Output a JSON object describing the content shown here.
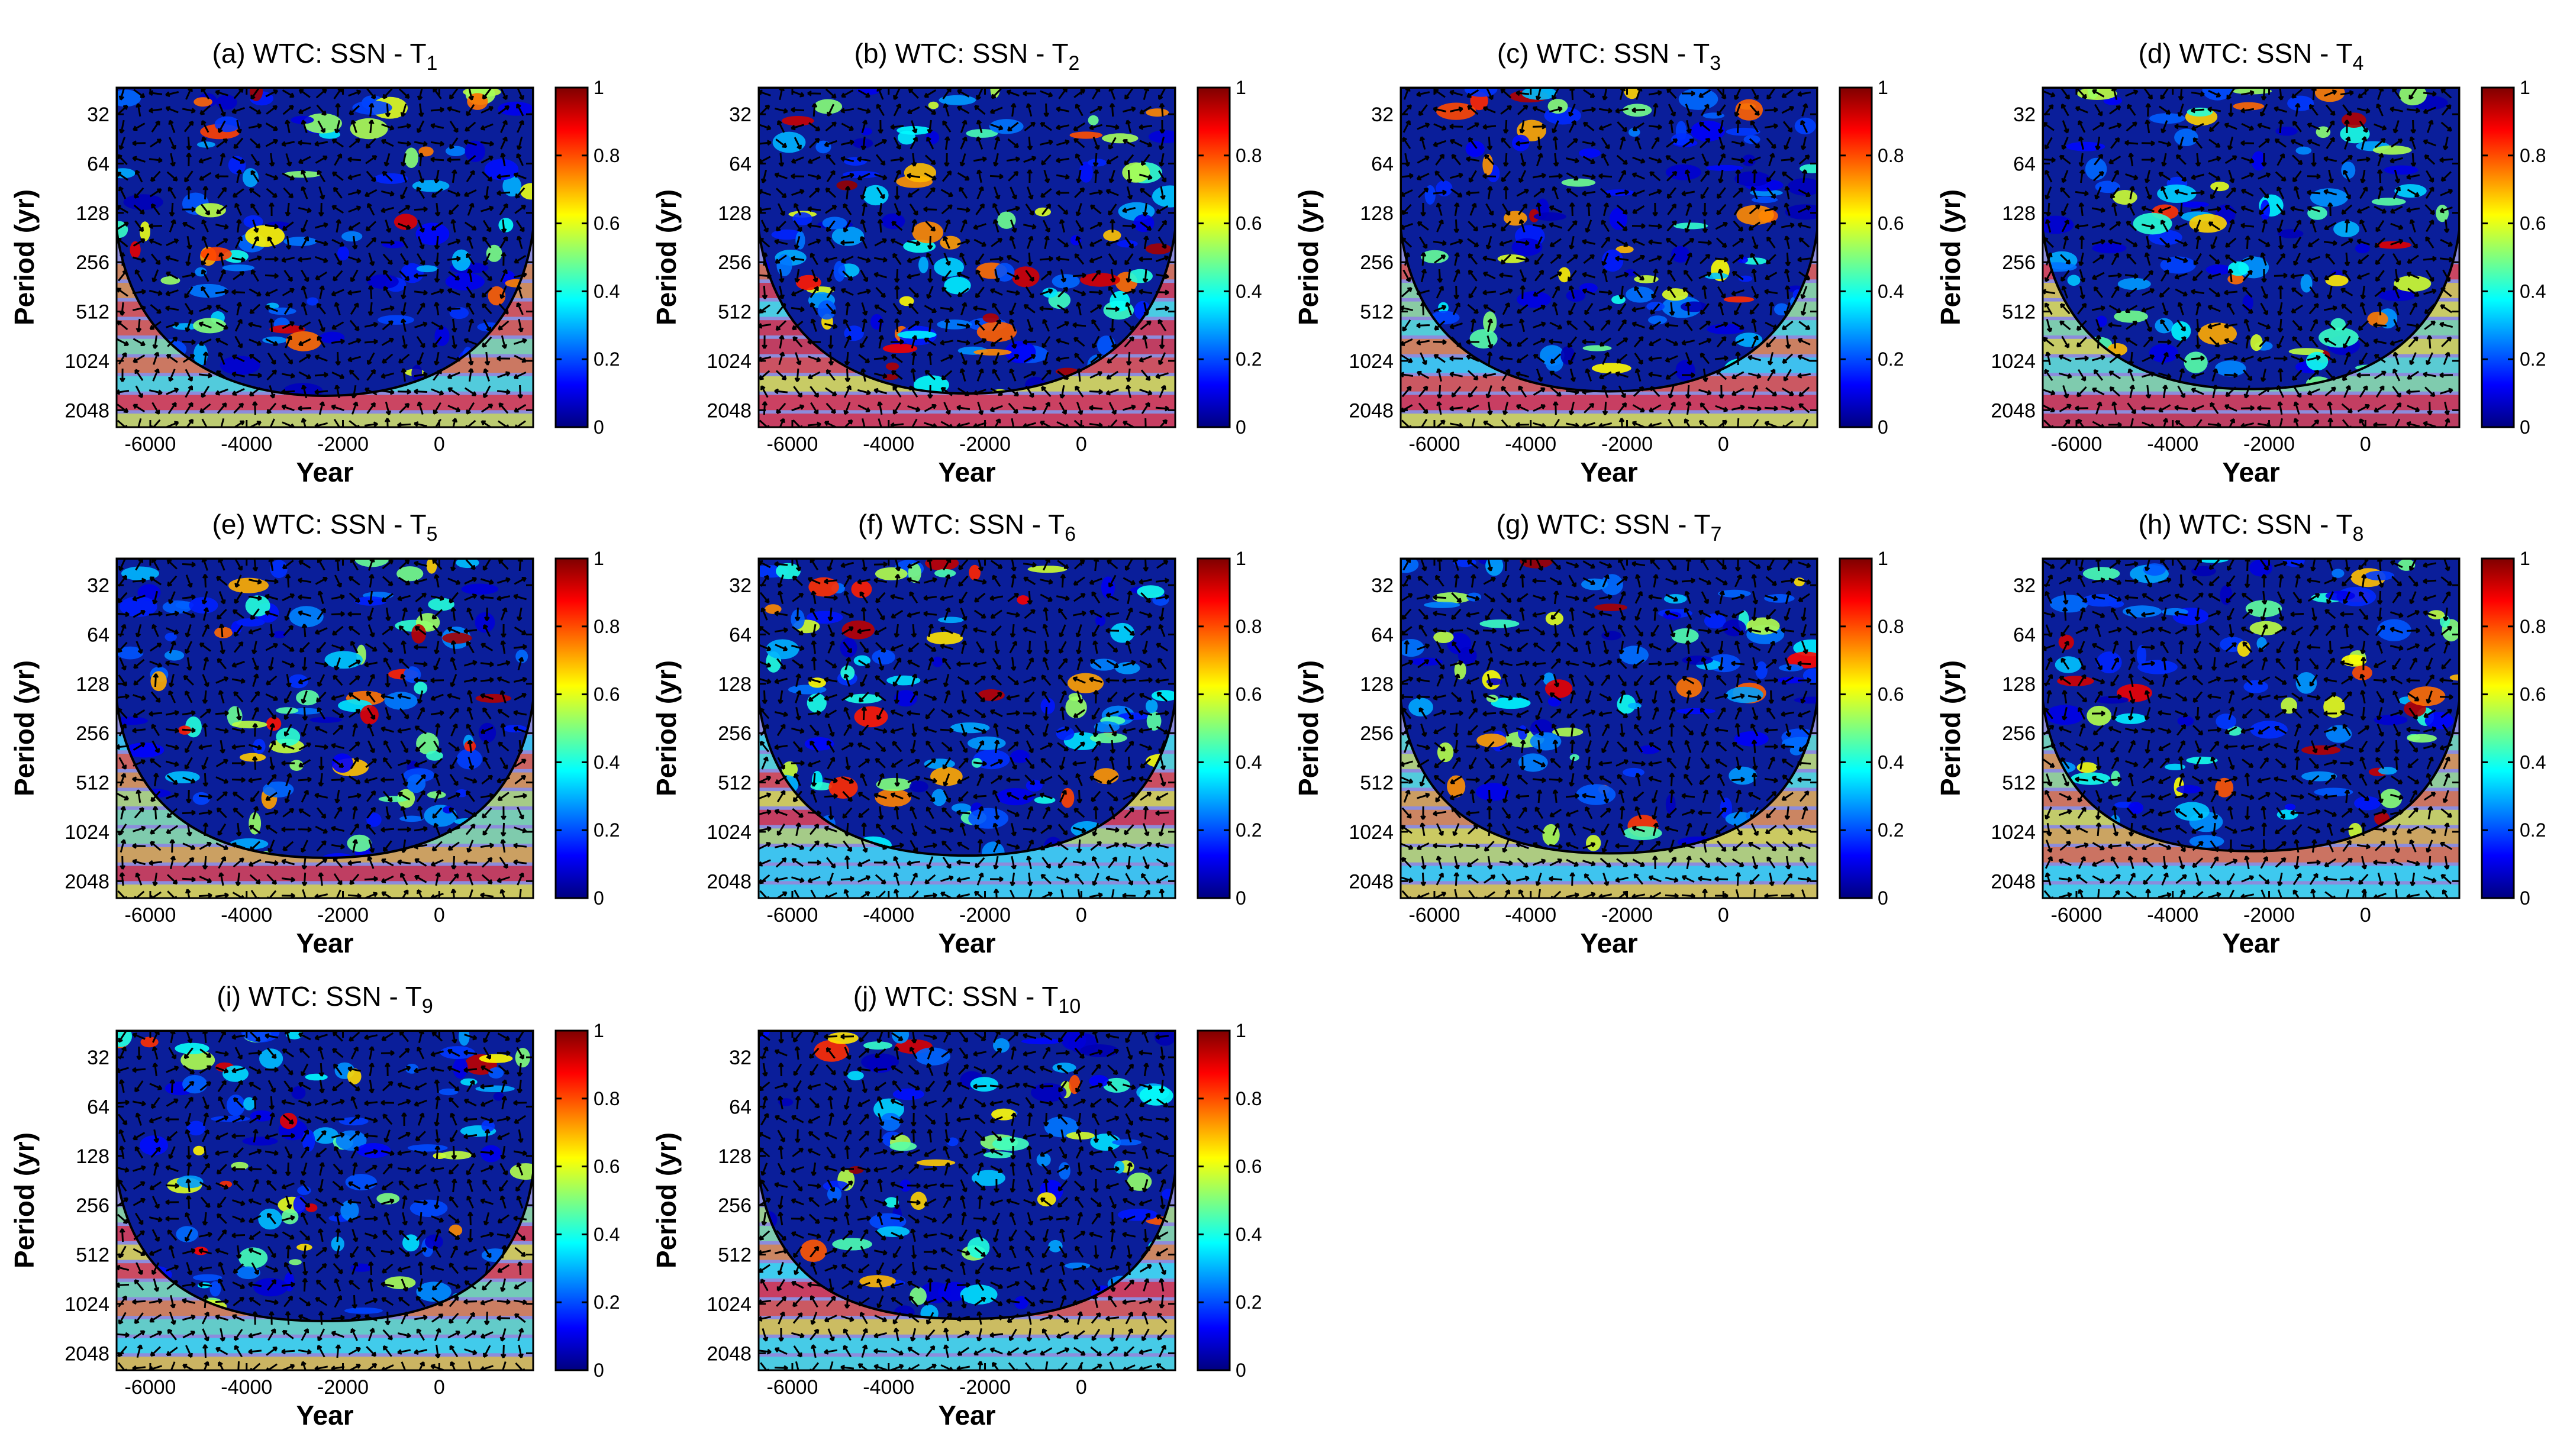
{
  "chart_data": [
    {
      "type": "heatmap",
      "panel": "a",
      "title_prefix": "(a) WTC: SSN - T",
      "title_subscript": "1",
      "xlabel": "Year",
      "ylabel": "Period (yr)",
      "xlim": [
        -6700,
        1950
      ],
      "ylim": [
        22,
        2600
      ],
      "x_ticks": [
        "-6000",
        "-4000",
        "-2000",
        "0"
      ],
      "x_tick_values": [
        -6000,
        -4000,
        -2000,
        0
      ],
      "y_ticks": [
        "32",
        "64",
        "128",
        "256",
        "512",
        "1024",
        "2048"
      ],
      "y_tick_values": [
        32,
        64,
        128,
        256,
        512,
        1024,
        2048
      ],
      "colorbar_ticks": [
        "0",
        "0.2",
        "0.4",
        "0.6",
        "0.8",
        "1"
      ],
      "colorbar_range": [
        0,
        1
      ]
    },
    {
      "type": "heatmap",
      "panel": "b",
      "title_prefix": "(b) WTC: SSN - T",
      "title_subscript": "2",
      "xlabel": "Year",
      "ylabel": "Period (yr)",
      "xlim": [
        -6700,
        1950
      ],
      "ylim": [
        22,
        2600
      ],
      "x_ticks": [
        "-6000",
        "-4000",
        "-2000",
        "0"
      ],
      "x_tick_values": [
        -6000,
        -4000,
        -2000,
        0
      ],
      "y_ticks": [
        "32",
        "64",
        "128",
        "256",
        "512",
        "1024",
        "2048"
      ],
      "y_tick_values": [
        32,
        64,
        128,
        256,
        512,
        1024,
        2048
      ],
      "colorbar_ticks": [
        "0",
        "0.2",
        "0.4",
        "0.6",
        "0.8",
        "1"
      ],
      "colorbar_range": [
        0,
        1
      ]
    },
    {
      "type": "heatmap",
      "panel": "c",
      "title_prefix": "(c) WTC: SSN - T",
      "title_subscript": "3",
      "xlabel": "Year",
      "ylabel": "Period (yr)",
      "xlim": [
        -6700,
        1950
      ],
      "ylim": [
        22,
        2600
      ],
      "x_ticks": [
        "-6000",
        "-4000",
        "-2000",
        "0"
      ],
      "x_tick_values": [
        -6000,
        -4000,
        -2000,
        0
      ],
      "y_ticks": [
        "32",
        "64",
        "128",
        "256",
        "512",
        "1024",
        "2048"
      ],
      "y_tick_values": [
        32,
        64,
        128,
        256,
        512,
        1024,
        2048
      ],
      "colorbar_ticks": [
        "0",
        "0.2",
        "0.4",
        "0.6",
        "0.8",
        "1"
      ],
      "colorbar_range": [
        0,
        1
      ]
    },
    {
      "type": "heatmap",
      "panel": "d",
      "title_prefix": "(d) WTC: SSN - T",
      "title_subscript": "4",
      "xlabel": "Year",
      "ylabel": "Period (yr)",
      "xlim": [
        -6700,
        1950
      ],
      "ylim": [
        22,
        2600
      ],
      "x_ticks": [
        "-6000",
        "-4000",
        "-2000",
        "0"
      ],
      "x_tick_values": [
        -6000,
        -4000,
        -2000,
        0
      ],
      "y_ticks": [
        "32",
        "64",
        "128",
        "256",
        "512",
        "1024",
        "2048"
      ],
      "y_tick_values": [
        32,
        64,
        128,
        256,
        512,
        1024,
        2048
      ],
      "colorbar_ticks": [
        "0",
        "0.2",
        "0.4",
        "0.6",
        "0.8",
        "1"
      ],
      "colorbar_range": [
        0,
        1
      ]
    },
    {
      "type": "heatmap",
      "panel": "e",
      "title_prefix": "(e) WTC: SSN - T",
      "title_subscript": "5",
      "xlabel": "Year",
      "ylabel": "Period (yr)",
      "xlim": [
        -6700,
        1950
      ],
      "ylim": [
        22,
        2600
      ],
      "x_ticks": [
        "-6000",
        "-4000",
        "-2000",
        "0"
      ],
      "x_tick_values": [
        -6000,
        -4000,
        -2000,
        0
      ],
      "y_ticks": [
        "32",
        "64",
        "128",
        "256",
        "512",
        "1024",
        "2048"
      ],
      "y_tick_values": [
        32,
        64,
        128,
        256,
        512,
        1024,
        2048
      ],
      "colorbar_ticks": [
        "0",
        "0.2",
        "0.4",
        "0.6",
        "0.8",
        "1"
      ],
      "colorbar_range": [
        0,
        1
      ]
    },
    {
      "type": "heatmap",
      "panel": "f",
      "title_prefix": "(f) WTC: SSN - T",
      "title_subscript": "6",
      "xlabel": "Year",
      "ylabel": "Period (yr)",
      "xlim": [
        -6700,
        1950
      ],
      "ylim": [
        22,
        2600
      ],
      "x_ticks": [
        "-6000",
        "-4000",
        "-2000",
        "0"
      ],
      "x_tick_values": [
        -6000,
        -4000,
        -2000,
        0
      ],
      "y_ticks": [
        "32",
        "64",
        "128",
        "256",
        "512",
        "1024",
        "2048"
      ],
      "y_tick_values": [
        32,
        64,
        128,
        256,
        512,
        1024,
        2048
      ],
      "colorbar_ticks": [
        "0",
        "0.2",
        "0.4",
        "0.6",
        "0.8",
        "1"
      ],
      "colorbar_range": [
        0,
        1
      ]
    },
    {
      "type": "heatmap",
      "panel": "g",
      "title_prefix": "(g) WTC: SSN - T",
      "title_subscript": "7",
      "xlabel": "Year",
      "ylabel": "Period (yr)",
      "xlim": [
        -6700,
        1950
      ],
      "ylim": [
        22,
        2600
      ],
      "x_ticks": [
        "-6000",
        "-4000",
        "-2000",
        "0"
      ],
      "x_tick_values": [
        -6000,
        -4000,
        -2000,
        0
      ],
      "y_ticks": [
        "32",
        "64",
        "128",
        "256",
        "512",
        "1024",
        "2048"
      ],
      "y_tick_values": [
        32,
        64,
        128,
        256,
        512,
        1024,
        2048
      ],
      "colorbar_ticks": [
        "0",
        "0.2",
        "0.4",
        "0.6",
        "0.8",
        "1"
      ],
      "colorbar_range": [
        0,
        1
      ]
    },
    {
      "type": "heatmap",
      "panel": "h",
      "title_prefix": "(h) WTC: SSN - T",
      "title_subscript": "8",
      "xlabel": "Year",
      "ylabel": "Period (yr)",
      "xlim": [
        -6700,
        1950
      ],
      "ylim": [
        22,
        2600
      ],
      "x_ticks": [
        "-6000",
        "-4000",
        "-2000",
        "0"
      ],
      "x_tick_values": [
        -6000,
        -4000,
        -2000,
        0
      ],
      "y_ticks": [
        "32",
        "64",
        "128",
        "256",
        "512",
        "1024",
        "2048"
      ],
      "y_tick_values": [
        32,
        64,
        128,
        256,
        512,
        1024,
        2048
      ],
      "colorbar_ticks": [
        "0",
        "0.2",
        "0.4",
        "0.6",
        "0.8",
        "1"
      ],
      "colorbar_range": [
        0,
        1
      ]
    },
    {
      "type": "heatmap",
      "panel": "i",
      "title_prefix": "(i) WTC: SSN - T",
      "title_subscript": "9",
      "xlabel": "Year",
      "ylabel": "Period (yr)",
      "xlim": [
        -6700,
        1950
      ],
      "ylim": [
        22,
        2600
      ],
      "x_ticks": [
        "-6000",
        "-4000",
        "-2000",
        "0"
      ],
      "x_tick_values": [
        -6000,
        -4000,
        -2000,
        0
      ],
      "y_ticks": [
        "32",
        "64",
        "128",
        "256",
        "512",
        "1024",
        "2048"
      ],
      "y_tick_values": [
        32,
        64,
        128,
        256,
        512,
        1024,
        2048
      ],
      "colorbar_ticks": [
        "0",
        "0.2",
        "0.4",
        "0.6",
        "0.8",
        "1"
      ],
      "colorbar_range": [
        0,
        1
      ]
    },
    {
      "type": "heatmap",
      "panel": "j",
      "title_prefix": "(j) WTC: SSN - T",
      "title_subscript": "10",
      "xlabel": "Year",
      "ylabel": "Period (yr)",
      "xlim": [
        -6700,
        1950
      ],
      "ylim": [
        22,
        2600
      ],
      "x_ticks": [
        "-6000",
        "-4000",
        "-2000",
        "0"
      ],
      "x_tick_values": [
        -6000,
        -4000,
        -2000,
        0
      ],
      "y_ticks": [
        "32",
        "64",
        "128",
        "256",
        "512",
        "1024",
        "2048"
      ],
      "y_tick_values": [
        32,
        64,
        128,
        256,
        512,
        1024,
        2048
      ],
      "colorbar_ticks": [
        "0",
        "0.2",
        "0.4",
        "0.6",
        "0.8",
        "1"
      ],
      "colorbar_range": [
        0,
        1
      ]
    }
  ],
  "colormap": [
    "#00007f",
    "#0000ff",
    "#007fff",
    "#00ffff",
    "#7fff7f",
    "#ffff00",
    "#ff7f00",
    "#ff0000",
    "#7f0000"
  ],
  "cone_shade_color": "#8c8cdc"
}
